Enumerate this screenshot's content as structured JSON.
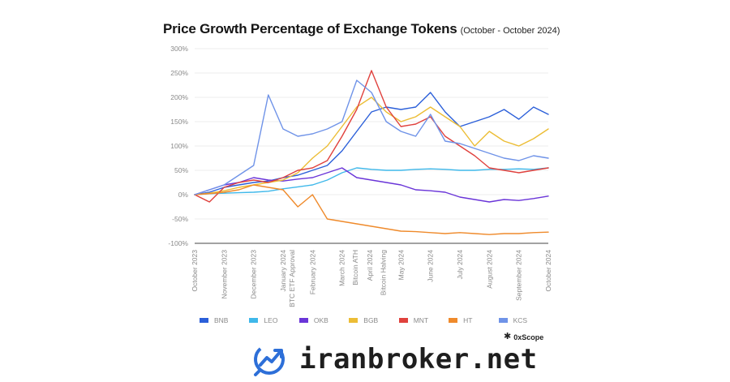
{
  "header": {
    "title": "Price Growth Percentage of Exchange Tokens",
    "subtitle": "(October - October 2024)"
  },
  "brand": {
    "icon": "0xscope-logo-icon",
    "name": "0xScope"
  },
  "footer": {
    "icon": "growth-chart-logo-icon",
    "site": "iranbroker.net",
    "accent_color": "#2d6fd8"
  },
  "chart_data": {
    "type": "line",
    "title": "Price Growth Percentage of Exchange Tokens",
    "subtitle": "(October - October 2024)",
    "xlabel": "",
    "ylabel": "",
    "y_unit": "%",
    "ylim": [
      -100,
      300
    ],
    "y_ticks": [
      -100,
      -50,
      0,
      50,
      100,
      150,
      200,
      250,
      300
    ],
    "y_tick_labels": [
      "-100%",
      "-50%",
      "0%",
      "50%",
      "100%",
      "150%",
      "200%",
      "250%",
      "300%"
    ],
    "grid": true,
    "legend_position": "bottom",
    "x_labels": [
      "October 2023",
      "November 2023",
      "December 2023",
      "January 2024",
      "BTC ETF Approval",
      "February 2024",
      "March 2024",
      "Bitcoin ATH",
      "April 2024",
      "Bitcoin Halving",
      "May 2024",
      "June 2024",
      "July 2024",
      "August 2024",
      "September 2024",
      "October 2024"
    ],
    "x_label_positions": [
      0,
      1.0,
      2.0,
      3.0,
      3.3,
      4.0,
      5.0,
      5.45,
      5.95,
      6.4,
      7.0,
      8.0,
      9.0,
      10.0,
      11.0,
      12.0
    ],
    "x_range": [
      0,
      12
    ],
    "series": [
      {
        "name": "BNB",
        "color": "#2b5fd9",
        "x": [
          0,
          0.5,
          1,
          1.5,
          2,
          2.5,
          3,
          3.5,
          4,
          4.5,
          5,
          5.5,
          6,
          6.5,
          7,
          7.5,
          8,
          8.5,
          9,
          9.5,
          10,
          10.5,
          11,
          11.5,
          12
        ],
        "values": [
          0,
          5,
          15,
          20,
          25,
          28,
          35,
          40,
          50,
          60,
          90,
          130,
          170,
          180,
          175,
          180,
          210,
          170,
          140,
          150,
          160,
          175,
          155,
          180,
          165
        ]
      },
      {
        "name": "LEO",
        "color": "#3fb8ea",
        "x": [
          0,
          0.5,
          1,
          1.5,
          2,
          2.5,
          3,
          3.5,
          4,
          4.5,
          5,
          5.5,
          6,
          6.5,
          7,
          7.5,
          8,
          8.5,
          9,
          9.5,
          10,
          10.5,
          11,
          11.5,
          12
        ],
        "values": [
          0,
          2,
          3,
          4,
          5,
          7,
          12,
          16,
          20,
          30,
          45,
          55,
          52,
          50,
          50,
          52,
          53,
          52,
          50,
          50,
          52,
          52,
          53,
          52,
          55
        ]
      },
      {
        "name": "OKB",
        "color": "#6a35d8",
        "x": [
          0,
          0.5,
          1,
          1.5,
          2,
          2.5,
          3,
          3.5,
          4,
          4.5,
          5,
          5.5,
          6,
          6.5,
          7,
          7.5,
          8,
          8.5,
          9,
          9.5,
          10,
          10.5,
          11,
          11.5,
          12
        ],
        "values": [
          0,
          10,
          20,
          25,
          35,
          30,
          28,
          32,
          35,
          45,
          55,
          35,
          30,
          25,
          20,
          10,
          8,
          5,
          -5,
          -10,
          -15,
          -10,
          -12,
          -8,
          -3
        ]
      },
      {
        "name": "BGB",
        "color": "#ecbd35",
        "x": [
          0,
          0.5,
          1,
          1.5,
          2,
          2.5,
          3,
          3.5,
          4,
          4.5,
          5,
          5.5,
          6,
          6.5,
          7,
          7.5,
          8,
          8.5,
          9,
          9.5,
          10,
          10.5,
          11,
          11.5,
          12
        ],
        "values": [
          0,
          3,
          8,
          15,
          20,
          25,
          30,
          45,
          75,
          100,
          140,
          180,
          200,
          170,
          150,
          160,
          180,
          160,
          140,
          100,
          130,
          110,
          100,
          115,
          135
        ]
      },
      {
        "name": "MNT",
        "color": "#e0413d",
        "x": [
          0,
          0.5,
          1,
          1.5,
          2,
          2.5,
          3,
          3.5,
          4,
          4.5,
          5,
          5.5,
          6,
          6.5,
          7,
          7.5,
          8,
          8.5,
          9,
          9.5,
          10,
          10.5,
          11,
          11.5,
          12
        ],
        "values": [
          0,
          -15,
          15,
          25,
          30,
          25,
          35,
          50,
          55,
          70,
          120,
          175,
          255,
          180,
          140,
          145,
          160,
          120,
          100,
          80,
          55,
          50,
          45,
          50,
          55
        ]
      },
      {
        "name": "HT",
        "color": "#ef8a2b",
        "x": [
          0,
          0.5,
          1,
          1.5,
          2,
          2.5,
          3,
          3.5,
          4,
          4.5,
          5,
          5.5,
          6,
          6.5,
          7,
          7.5,
          8,
          8.5,
          9,
          9.5,
          10,
          10.5,
          11,
          11.5,
          12
        ],
        "values": [
          0,
          2,
          5,
          10,
          20,
          15,
          10,
          -25,
          0,
          -50,
          -55,
          -60,
          -65,
          -70,
          -75,
          -76,
          -78,
          -80,
          -78,
          -80,
          -82,
          -80,
          -80,
          -78,
          -77
        ]
      },
      {
        "name": "KCS",
        "color": "#6f93e8",
        "x": [
          0,
          0.5,
          1,
          1.5,
          2,
          2.5,
          3,
          3.5,
          4,
          4.5,
          5,
          5.5,
          6,
          6.5,
          7,
          7.5,
          8,
          8.5,
          9,
          9.5,
          10,
          10.5,
          11,
          11.5,
          12
        ],
        "values": [
          0,
          10,
          20,
          40,
          60,
          205,
          135,
          120,
          125,
          135,
          150,
          235,
          210,
          150,
          130,
          120,
          165,
          110,
          105,
          95,
          85,
          75,
          70,
          80,
          75
        ]
      }
    ]
  }
}
